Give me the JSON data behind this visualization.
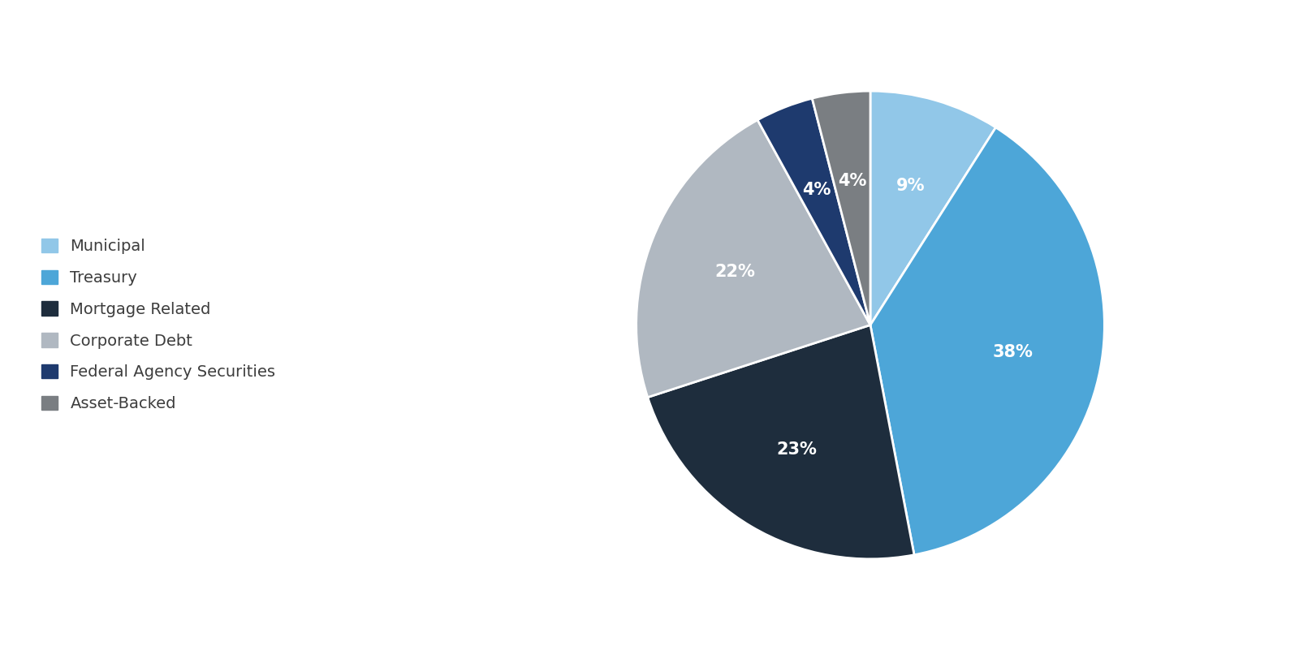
{
  "labels": [
    "Municipal",
    "Treasury",
    "Mortgage Related",
    "Corporate Debt",
    "Federal Agency Securities",
    "Asset-Backed"
  ],
  "values": [
    9,
    38,
    23,
    22,
    4,
    4
  ],
  "colors": [
    "#91c7e8",
    "#4da6d8",
    "#1e2d3d",
    "#b0b8c1",
    "#1e3a6e",
    "#7a7e82"
  ],
  "text_colors": [
    "white",
    "white",
    "white",
    "white",
    "white",
    "white"
  ],
  "legend_colors": [
    "#91c7e8",
    "#4da6d8",
    "#1e2d3d",
    "#b0b8c1",
    "#1e3a6e",
    "#7a7e82"
  ],
  "background_color": "#ffffff",
  "startangle": 90,
  "label_fontsize": 15,
  "legend_fontsize": 14,
  "legend_text_color": "#3d3d3d"
}
